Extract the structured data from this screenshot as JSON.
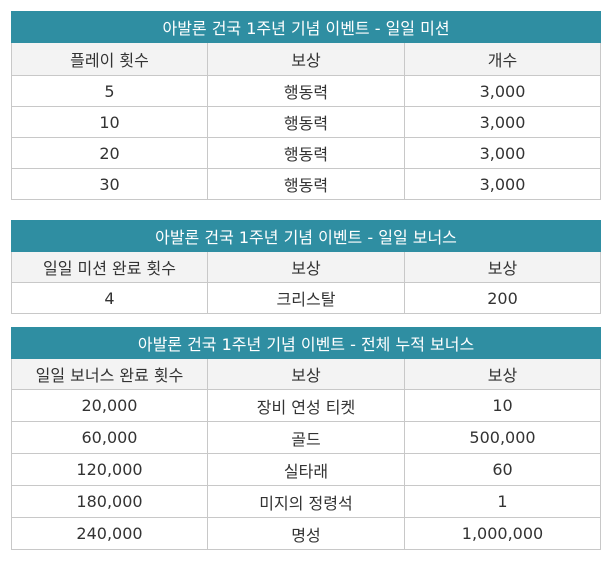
{
  "daily_mission": {
    "title": "아발론 건국 1주년 기념 이벤트 - 일일 미션",
    "headers": [
      "플레이 횟수",
      "보상",
      "개수"
    ],
    "rows": [
      [
        "5",
        "행동력",
        "3,000"
      ],
      [
        "10",
        "행동력",
        "3,000"
      ],
      [
        "20",
        "행동력",
        "3,000"
      ],
      [
        "30",
        "행동력",
        "3,000"
      ]
    ]
  },
  "daily_bonus": {
    "title": "아발론 건국 1주년 기념 이벤트 - 일일 보너스",
    "headers": [
      "일일 미션 완료 횟수",
      "보상",
      "보상"
    ],
    "rows": [
      [
        "4",
        "크리스탈",
        "200"
      ]
    ]
  },
  "cumulative_bonus": {
    "title": "아발론 건국 1주년 기념 이벤트 - 전체 누적 보너스",
    "headers": [
      "일일 보너스 완료 횟수",
      "보상",
      "보상"
    ],
    "rows": [
      [
        "20,000",
        "장비 연성 티켓",
        "10"
      ],
      [
        "60,000",
        "골드",
        "500,000"
      ],
      [
        "120,000",
        "실타래",
        "60"
      ],
      [
        "180,000",
        "미지의 정령석",
        "1"
      ],
      [
        "240,000",
        "명성",
        "1,000,000"
      ]
    ]
  },
  "colors": {
    "title_bg": "#2f8ea2",
    "header_bg": "#f3f3f3",
    "border": "#c8c8c8"
  }
}
